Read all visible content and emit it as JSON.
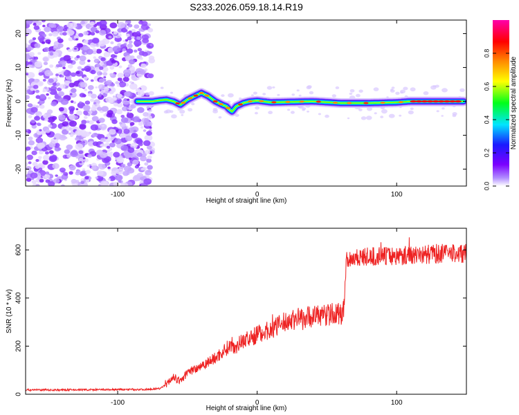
{
  "title": "S233.2026.059.18.14.R19",
  "chart_data": [
    {
      "type": "heatmap",
      "title": "S233.2026.059.18.14.R19",
      "xlabel": "Height of straight line (km)",
      "ylabel": "Frequency (Hz)",
      "xlim": [
        -166,
        150
      ],
      "ylim": [
        -25,
        24
      ],
      "xticks": [
        -100,
        0,
        100
      ],
      "xtick_labels": [
        "-100",
        "0",
        "100"
      ],
      "yticks": [
        -20,
        -10,
        0,
        10,
        20
      ],
      "ytick_labels": [
        "-20",
        "-10",
        "0",
        "10",
        "20"
      ],
      "noise_region_x": [
        -166,
        -75
      ],
      "ridge": {
        "x": [
          -86,
          -80,
          -75,
          -70,
          -65,
          -60,
          -55,
          -50,
          -45,
          -40,
          -35,
          -30,
          -25,
          -22,
          -20,
          -18,
          -15,
          -10,
          -5,
          0,
          10,
          20,
          40,
          60,
          80,
          100,
          110,
          120,
          140,
          148
        ],
        "frequency_hz": [
          0,
          0,
          0,
          0.3,
          0.5,
          0,
          -1,
          0.5,
          1.5,
          2.5,
          1.5,
          0,
          -1,
          -1.5,
          -2.4,
          -3,
          -1.5,
          -0.5,
          0,
          0.2,
          -0.3,
          -0.2,
          0,
          -0.5,
          -0.5,
          -0.3,
          0,
          0,
          0,
          0
        ]
      },
      "colorbar": {
        "label": "Normalized spectral amplitude",
        "range": [
          0,
          1
        ],
        "ticks": [
          0,
          0.2,
          0.4,
          0.6,
          0.8
        ],
        "tick_labels": [
          "0.0",
          "0.2",
          "0.4",
          "0.6",
          "0.8"
        ],
        "colors": [
          "#ffffff",
          "#7b00ff",
          "#1a1aff",
          "#00e5ff",
          "#00ff1a",
          "#ffff00",
          "#ff8c00",
          "#ff0000",
          "#ff00aa"
        ]
      }
    },
    {
      "type": "line",
      "xlabel": "Height of straight line (km)",
      "ylabel": "SNR (10 * v/v)",
      "xlim": [
        -166,
        150
      ],
      "ylim": [
        0,
        690
      ],
      "xticks": [
        -100,
        0,
        100
      ],
      "xtick_labels": [
        "-100",
        "0",
        "100"
      ],
      "yticks": [
        0,
        200,
        400,
        600
      ],
      "ytick_labels": [
        "0",
        "200",
        "400",
        "600"
      ],
      "series": [
        {
          "name": "SNR",
          "color": "#ee2222",
          "x": [
            -166,
            -140,
            -110,
            -80,
            -70,
            -65,
            -60,
            -58,
            -55,
            -50,
            -45,
            -40,
            -35,
            -30,
            -25,
            -20,
            -15,
            -10,
            -5,
            0,
            5,
            10,
            15,
            20,
            25,
            30,
            40,
            50,
            60,
            62,
            63,
            64,
            70,
            80,
            90,
            100,
            110,
            120,
            130,
            140,
            150
          ],
          "y": [
            18,
            18,
            19,
            20,
            24,
            40,
            75,
            60,
            55,
            90,
            105,
            120,
            135,
            150,
            175,
            200,
            200,
            225,
            230,
            250,
            260,
            270,
            285,
            300,
            310,
            318,
            325,
            330,
            335,
            340,
            480,
            560,
            570,
            570,
            575,
            575,
            580,
            580,
            585,
            585,
            585
          ]
        }
      ]
    }
  ]
}
